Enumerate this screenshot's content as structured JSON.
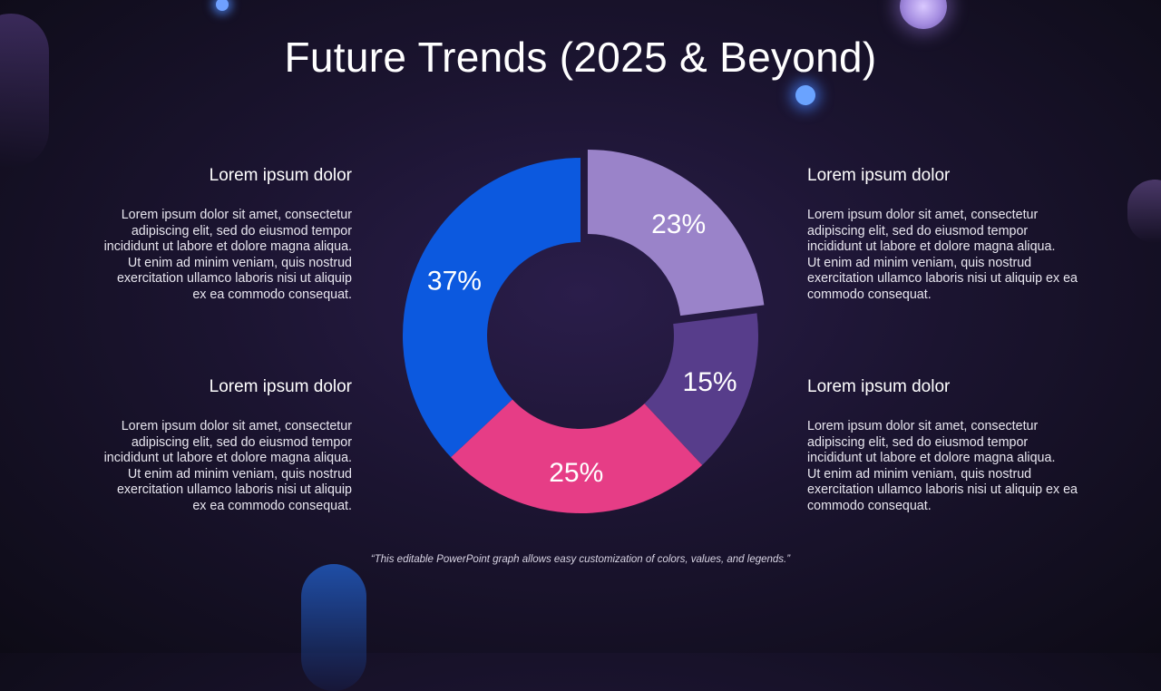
{
  "title": "Future Trends (2025 & Beyond)",
  "blocks": {
    "top_left": {
      "heading": "Lorem ipsum dolor",
      "line1": "Lorem ipsum dolor sit amet, consectetur adipiscing elit, sed do eiusmod tempor incididunt ut labore et dolore magna aliqua.",
      "line2": "Ut enim ad minim veniam, quis nostrud exercitation ullamco laboris nisi ut aliquip ex ea commodo consequat."
    },
    "bottom_left": {
      "heading": "Lorem ipsum dolor",
      "line1": "Lorem ipsum dolor sit amet, consectetur adipiscing elit, sed do eiusmod tempor incididunt ut labore et dolore magna aliqua.",
      "line2": "Ut enim ad minim veniam, quis nostrud exercitation ullamco laboris nisi ut aliquip ex ea commodo consequat."
    },
    "top_right": {
      "heading": "Lorem ipsum dolor",
      "line1": "Lorem ipsum dolor sit amet, consectetur adipiscing elit, sed do eiusmod tempor incididunt ut labore et dolore magna aliqua.",
      "line2": "Ut enim ad minim veniam, quis nostrud exercitation ullamco laboris nisi ut aliquip ex ea commodo consequat."
    },
    "bottom_right": {
      "heading": "Lorem ipsum dolor",
      "line1": "Lorem ipsum dolor sit amet, consectetur adipiscing elit, sed do eiusmod tempor incididunt ut labore et dolore magna aliqua.",
      "line2": "Ut enim ad minim veniam, quis nostrud exercitation ullamco laboris nisi ut aliquip ex ea commodo consequat."
    }
  },
  "caption": "“This editable PowerPoint graph allows easy customization of colors, values, and legends.”",
  "chart_data": {
    "type": "pie",
    "donut": true,
    "title": "",
    "slices": [
      {
        "label": "23%",
        "value": 23,
        "color": "#9a83c9",
        "exploded": true
      },
      {
        "label": "15%",
        "value": 15,
        "color": "#573d8b",
        "exploded": false
      },
      {
        "label": "25%",
        "value": 25,
        "color": "#e63d86",
        "exploded": false
      },
      {
        "label": "37%",
        "value": 37,
        "color": "#0c59df",
        "exploded": false
      }
    ]
  }
}
